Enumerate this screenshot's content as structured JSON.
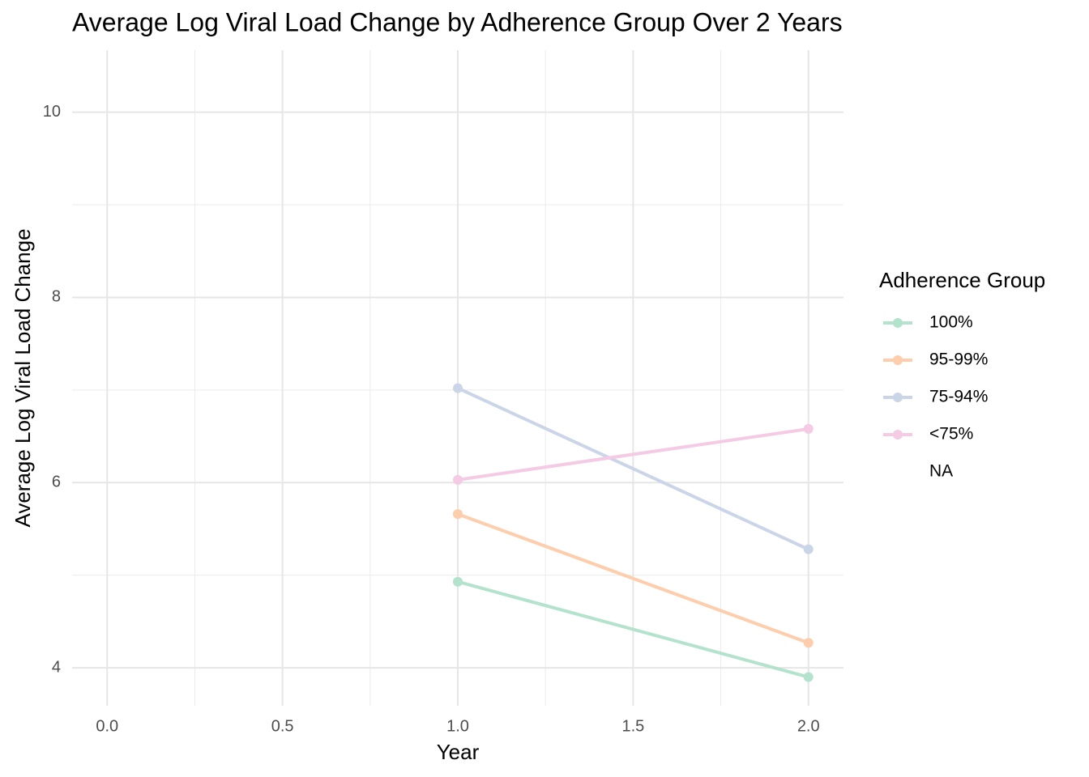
{
  "chart_data": {
    "type": "line",
    "title": "Average Log Viral Load Change by Adherence Group Over 2 Years",
    "x_label": "Year",
    "y_label": "Average Log Viral Load Change",
    "legend_title": "Adherence Group",
    "x": [
      1.0,
      2.0
    ],
    "series": [
      {
        "name": "100%",
        "color": "#b3e2cd",
        "values": [
          4.93,
          3.9
        ]
      },
      {
        "name": "95-99%",
        "color": "#fdcdac",
        "values": [
          5.66,
          4.27
        ]
      },
      {
        "name": "75-94%",
        "color": "#cbd5e8",
        "values": [
          7.02,
          5.28
        ]
      },
      {
        "name": "<75%",
        "color": "#f4cae4",
        "values": [
          6.03,
          6.58
        ]
      },
      {
        "name": "NA",
        "values": [
          null,
          null
        ]
      }
    ],
    "xlim": [
      -0.1,
      2.1
    ],
    "xticks": [
      {
        "value": 0,
        "label": "0.0"
      },
      0.5,
      {
        "value": 1,
        "label": "1.0"
      },
      1.5,
      {
        "value": 2,
        "label": "2.0"
      }
    ],
    "x_minor_breaks": [
      0.25,
      0.75,
      1.25,
      1.75
    ],
    "ylim": [
      3.59,
      10.67
    ],
    "yticks": [
      4,
      6,
      8,
      10
    ],
    "y_minor_breaks": [
      5,
      7,
      9
    ],
    "grid": true,
    "legend_position": "right"
  }
}
